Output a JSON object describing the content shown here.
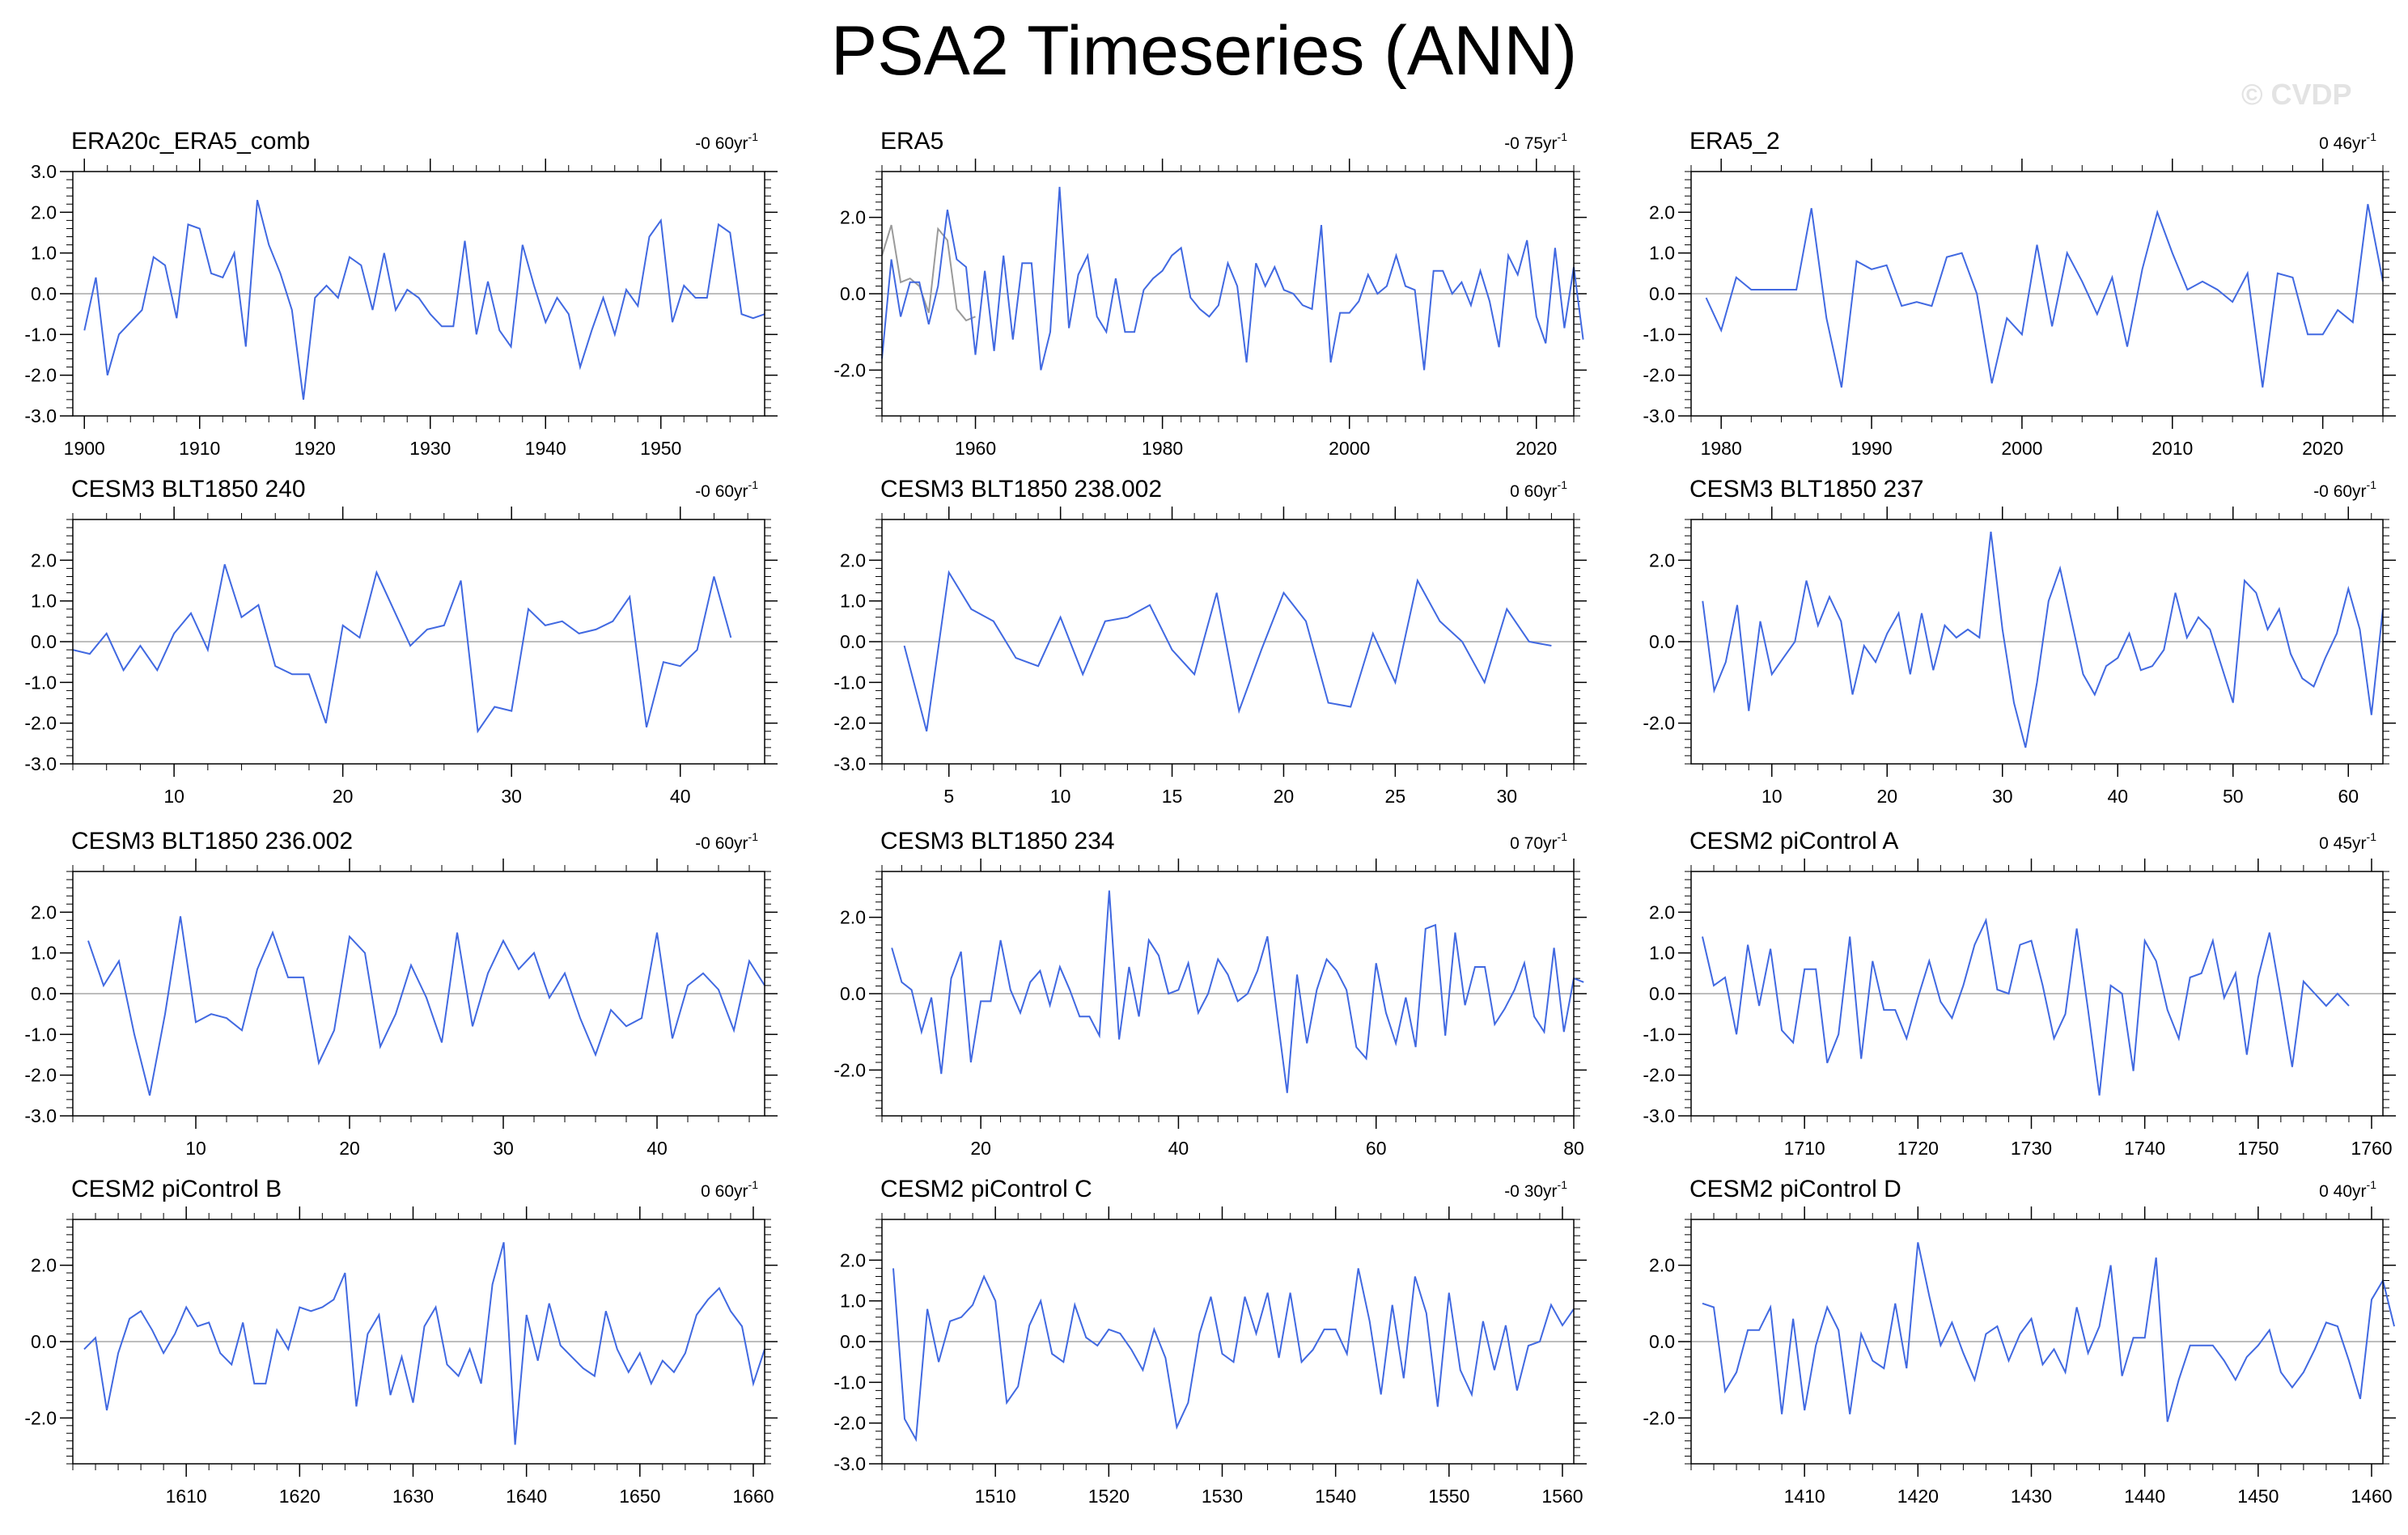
{
  "title": "PSA2 Timeseries (ANN)",
  "watermark": "© CVDP",
  "colors": {
    "line": "#4169e1",
    "zero": "#bdbdbd",
    "obs_overlay": "#9a9a9a",
    "axis": "#000000"
  },
  "chart_data": [
    {
      "type": "line",
      "title": "ERA20c_ERA5_comb",
      "trend": "-0 60yr",
      "xlim": [
        1899,
        1959
      ],
      "ylim": [
        -3,
        3
      ],
      "xticks": [
        1900,
        1910,
        1920,
        1930,
        1940,
        1950
      ],
      "yticks": [
        -3,
        -2,
        -1,
        0,
        1,
        2,
        3
      ],
      "ytick_labels": [
        "-3.0",
        "-2.0",
        "-1.0",
        "0.0",
        "1.0",
        "2.0",
        "3.0"
      ],
      "x_start": 1900,
      "x_step": 1,
      "values": [
        -0.9,
        0.4,
        -2.0,
        -1.0,
        -0.7,
        -0.4,
        0.9,
        0.7,
        -0.6,
        1.7,
        1.6,
        0.5,
        0.4,
        1.0,
        -1.3,
        2.3,
        1.2,
        0.5,
        -0.4,
        -2.6,
        -0.1,
        0.2,
        -0.1,
        0.9,
        0.7,
        -0.4,
        1.0,
        -0.4,
        0.1,
        -0.1,
        -0.5,
        -0.8,
        -0.8,
        1.3,
        -1.0,
        0.3,
        -0.9,
        -1.3,
        1.2,
        0.2,
        -0.7,
        -0.1,
        -0.5,
        -1.8,
        -0.9,
        -0.1,
        -1.0,
        0.1,
        -0.3,
        1.4,
        1.8,
        -0.7,
        0.2,
        -0.1,
        -0.1,
        1.7,
        1.5,
        -0.5,
        -0.6,
        -0.5
      ]
    },
    {
      "type": "line",
      "title": "ERA5",
      "trend": "-0 75yr",
      "xlim": [
        1950,
        2024
      ],
      "ylim": [
        -3.2,
        3.2
      ],
      "xticks": [
        1960,
        1980,
        2000,
        2020
      ],
      "yticks": [
        -2,
        0,
        2
      ],
      "ytick_labels": [
        "-2.0",
        "0.0",
        "2.0"
      ],
      "x_start": 1950,
      "x_step": 1,
      "values": [
        -1.7,
        0.9,
        -0.6,
        0.3,
        0.3,
        -0.8,
        0.2,
        2.2,
        0.9,
        0.7,
        -1.6,
        0.6,
        -1.5,
        1.0,
        -1.2,
        0.8,
        0.8,
        -2.0,
        -1.0,
        2.8,
        -0.9,
        0.5,
        1.0,
        -0.6,
        -1.0,
        0.4,
        -1.0,
        -1.0,
        0.1,
        0.4,
        0.6,
        1.0,
        1.2,
        -0.1,
        -0.4,
        -0.6,
        -0.3,
        0.8,
        0.2,
        -1.8,
        0.8,
        0.2,
        0.7,
        0.1,
        0.0,
        -0.3,
        -0.4,
        1.8,
        -1.8,
        -0.5,
        -0.5,
        -0.2,
        0.5,
        0.0,
        0.2,
        1.0,
        0.2,
        0.1,
        -2.0,
        0.6,
        0.6,
        0.0,
        0.3,
        -0.3,
        0.6,
        -0.2,
        -1.4,
        1.0,
        0.5,
        1.4,
        -0.6,
        -1.3,
        1.2,
        -0.9,
        0.7,
        -1.2
      ],
      "overlay": {
        "x_start": 1950,
        "values": [
          1.0,
          1.8,
          0.3,
          0.4,
          0.2,
          -0.5,
          1.7,
          1.4,
          -0.4,
          -0.7,
          -0.6
        ]
      }
    },
    {
      "type": "line",
      "title": "ERA5_2",
      "trend": "0 46yr",
      "xlim": [
        1978,
        2024
      ],
      "ylim": [
        -3,
        3
      ],
      "xticks": [
        1980,
        1990,
        2000,
        2010,
        2020
      ],
      "yticks": [
        -3,
        -2,
        -1,
        0,
        1,
        2
      ],
      "ytick_labels": [
        "-3.0",
        "-2.0",
        "-1.0",
        "0.0",
        "1.0",
        "2.0"
      ],
      "x_start": 1979,
      "x_step": 1,
      "values": [
        -0.1,
        -0.9,
        0.4,
        0.1,
        0.1,
        0.1,
        0.1,
        2.1,
        -0.6,
        -2.3,
        0.8,
        0.6,
        0.7,
        -0.3,
        -0.2,
        -0.3,
        0.9,
        1.0,
        0.0,
        -2.2,
        -0.6,
        -1.0,
        1.2,
        -0.8,
        1.0,
        0.3,
        -0.5,
        0.4,
        -1.3,
        0.6,
        2.0,
        1.0,
        0.1,
        0.3,
        0.1,
        -0.2,
        0.5,
        -2.3,
        0.5,
        0.4,
        -1.0,
        -1.0,
        -0.4,
        -0.7,
        2.2,
        0.3
      ]
    },
    {
      "type": "line",
      "title": "CESM3 BLT1850 240",
      "trend": "-0 60yr",
      "xlim": [
        4,
        45
      ],
      "ylim": [
        -3,
        3
      ],
      "xticks": [
        10,
        20,
        30,
        40
      ],
      "yticks": [
        -3,
        -2,
        -1,
        0,
        1,
        2
      ],
      "ytick_labels": [
        "-3.0",
        "-2.0",
        "-1.0",
        "0.0",
        "1.0",
        "2.0"
      ],
      "x_start": 4,
      "x_step": 1,
      "values": [
        -0.2,
        -0.3,
        0.2,
        -0.7,
        -0.1,
        -0.7,
        0.2,
        0.7,
        -0.2,
        1.9,
        0.6,
        0.9,
        -0.6,
        -0.8,
        -0.8,
        -2.0,
        0.4,
        0.1,
        1.7,
        0.8,
        -0.1,
        0.3,
        0.4,
        1.5,
        -2.2,
        -1.6,
        -1.7,
        0.8,
        0.4,
        0.5,
        0.2,
        0.3,
        0.5,
        1.1,
        -2.1,
        -0.5,
        -0.6,
        -0.2,
        1.6,
        0.1
      ]
    },
    {
      "type": "line",
      "title": "CESM3 BLT1850 238.002",
      "trend": "0 60yr",
      "xlim": [
        2,
        33
      ],
      "ylim": [
        -3,
        3
      ],
      "xticks": [
        5,
        10,
        15,
        20,
        25,
        30
      ],
      "yticks": [
        -3,
        -2,
        -1,
        0,
        1,
        2
      ],
      "ytick_labels": [
        "-3.0",
        "-2.0",
        "-1.0",
        "0.0",
        "1.0",
        "2.0"
      ],
      "x_start": 3,
      "x_step": 1,
      "values": [
        -0.1,
        -2.2,
        1.7,
        0.8,
        0.5,
        -0.4,
        -0.6,
        0.6,
        -0.8,
        0.5,
        0.6,
        0.9,
        -0.2,
        -0.8,
        1.2,
        -1.7,
        -0.2,
        1.2,
        0.5,
        -1.5,
        -1.6,
        0.2,
        -1.0,
        1.5,
        0.5,
        0.0,
        -1.0,
        0.8,
        0.0,
        -0.1
      ]
    },
    {
      "type": "line",
      "title": "CESM3 BLT1850 237",
      "trend": "-0 60yr",
      "xlim": [
        3,
        63
      ],
      "ylim": [
        -3,
        3
      ],
      "xticks": [
        10,
        20,
        30,
        40,
        50,
        60
      ],
      "yticks": [
        -2,
        0,
        2
      ],
      "ytick_labels": [
        "-2.0",
        "0.0",
        "2.0"
      ],
      "x_start": 4,
      "x_step": 1,
      "values": [
        1.0,
        -1.2,
        -0.5,
        0.9,
        -1.7,
        0.5,
        -0.8,
        -0.4,
        0.0,
        1.5,
        0.4,
        1.1,
        0.5,
        -1.3,
        -0.1,
        -0.5,
        0.2,
        0.7,
        -0.8,
        0.7,
        -0.7,
        0.4,
        0.1,
        0.3,
        0.1,
        2.7,
        0.3,
        -1.5,
        -2.6,
        -1.0,
        1.0,
        1.8,
        0.5,
        -0.8,
        -1.3,
        -0.6,
        -0.4,
        0.2,
        -0.7,
        -0.6,
        -0.2,
        1.2,
        0.1,
        0.6,
        0.3,
        -0.6,
        -1.5,
        1.5,
        1.2,
        0.3,
        0.8,
        -0.3,
        -0.9,
        -1.1,
        -0.4,
        0.2,
        1.3,
        0.3,
        -1.8,
        0.8
      ]
    },
    {
      "type": "line",
      "title": "CESM3 BLT1850 236.002",
      "trend": "-0 60yr",
      "xlim": [
        2,
        47
      ],
      "ylim": [
        -3,
        3
      ],
      "xticks": [
        10,
        20,
        30,
        40
      ],
      "yticks": [
        -3,
        -2,
        -1,
        0,
        1,
        2
      ],
      "ytick_labels": [
        "-3.0",
        "-2.0",
        "-1.0",
        "0.0",
        "1.0",
        "2.0"
      ],
      "x_start": 3,
      "x_step": 1,
      "values": [
        1.3,
        0.2,
        0.8,
        -1.0,
        -2.5,
        -0.5,
        1.9,
        -0.7,
        -0.5,
        -0.6,
        -0.9,
        0.6,
        1.5,
        0.4,
        0.4,
        -1.7,
        -0.9,
        1.4,
        1.0,
        -1.3,
        -0.5,
        0.7,
        -0.1,
        -1.2,
        1.5,
        -0.8,
        0.5,
        1.3,
        0.6,
        1.0,
        -0.1,
        0.5,
        -0.6,
        -1.5,
        -0.4,
        -0.8,
        -0.6,
        1.5,
        -1.1,
        0.2,
        0.5,
        0.1,
        -0.9,
        0.8,
        0.2
      ]
    },
    {
      "type": "line",
      "title": "CESM3 BLT1850 234",
      "trend": "0 70yr",
      "xlim": [
        10,
        80
      ],
      "ylim": [
        -3.2,
        3.2
      ],
      "xticks": [
        20,
        40,
        60,
        80
      ],
      "yticks": [
        -2,
        0,
        2
      ],
      "ytick_labels": [
        "-2.0",
        "0.0",
        "2.0"
      ],
      "x_start": 11,
      "x_step": 1,
      "values": [
        1.2,
        0.3,
        0.1,
        -1.0,
        -0.1,
        -2.1,
        0.4,
        1.1,
        -1.8,
        -0.2,
        -0.2,
        1.4,
        0.1,
        -0.5,
        0.3,
        0.6,
        -0.3,
        0.7,
        0.1,
        -0.6,
        -0.6,
        -1.1,
        2.7,
        -1.2,
        0.7,
        -0.6,
        1.4,
        1.0,
        0.0,
        0.1,
        0.8,
        -0.5,
        0.0,
        0.9,
        0.5,
        -0.2,
        0.0,
        0.6,
        1.5,
        -0.6,
        -2.6,
        0.5,
        -1.3,
        0.1,
        0.9,
        0.6,
        0.1,
        -1.4,
        -1.7,
        0.8,
        -0.5,
        -1.3,
        -0.1,
        -1.4,
        1.7,
        1.8,
        -1.1,
        1.6,
        -0.3,
        0.7,
        0.7,
        -0.8,
        -0.4,
        0.1,
        0.8,
        -0.6,
        -1.0,
        1.2,
        -1.0,
        0.4,
        0.3
      ]
    },
    {
      "type": "line",
      "title": "CESM2 piControl A",
      "trend": "0 45yr",
      "xlim": [
        1700,
        1761
      ],
      "ylim": [
        -3,
        3
      ],
      "xticks": [
        1710,
        1720,
        1730,
        1740,
        1750,
        1760
      ],
      "yticks": [
        -3,
        -2,
        -1,
        0,
        1,
        2
      ],
      "ytick_labels": [
        "-3.0",
        "-2.0",
        "-1.0",
        "0.0",
        "1.0",
        "2.0"
      ],
      "x_start": 1701,
      "x_step": 1,
      "values": [
        1.4,
        0.2,
        0.4,
        -1.0,
        1.2,
        -0.3,
        1.1,
        -0.9,
        -1.2,
        0.6,
        0.6,
        -1.7,
        -1.0,
        1.4,
        -1.6,
        0.8,
        -0.4,
        -0.4,
        -1.1,
        -0.1,
        0.8,
        -0.2,
        -0.6,
        0.2,
        1.2,
        1.8,
        0.1,
        0.0,
        1.2,
        1.3,
        0.2,
        -1.1,
        -0.5,
        1.6,
        -0.4,
        -2.5,
        0.2,
        0.0,
        -1.9,
        1.3,
        0.8,
        -0.4,
        -1.1,
        0.4,
        0.5,
        1.3,
        -0.1,
        0.5,
        -1.5,
        0.4,
        1.5,
        -0.1,
        -1.8,
        0.3,
        0.0,
        -0.3,
        0.0,
        -0.3
      ]
    },
    {
      "type": "line",
      "title": "CESM2 piControl B",
      "trend": "0 60yr",
      "xlim": [
        1600,
        1661
      ],
      "ylim": [
        -3.2,
        3.2
      ],
      "xticks": [
        1610,
        1620,
        1630,
        1640,
        1650,
        1660
      ],
      "yticks": [
        -2,
        0,
        2
      ],
      "ytick_labels": [
        "-2.0",
        "0.0",
        "2.0"
      ],
      "x_start": 1601,
      "x_step": 1,
      "values": [
        -0.2,
        0.1,
        -1.8,
        -0.3,
        0.6,
        0.8,
        0.3,
        -0.3,
        0.2,
        0.9,
        0.4,
        0.5,
        -0.3,
        -0.6,
        0.5,
        -1.1,
        -1.1,
        0.3,
        -0.2,
        0.9,
        0.8,
        0.9,
        1.1,
        1.8,
        -1.7,
        0.2,
        0.7,
        -1.4,
        -0.4,
        -1.6,
        0.4,
        0.9,
        -0.6,
        -0.9,
        -0.2,
        -1.1,
        1.5,
        2.6,
        -2.7,
        0.7,
        -0.5,
        1.0,
        -0.1,
        -0.4,
        -0.7,
        -0.9,
        0.8,
        -0.2,
        -0.8,
        -0.3,
        -1.1,
        -0.5,
        -0.8,
        -0.3,
        0.7,
        1.1,
        1.4,
        0.8,
        0.4,
        -1.1,
        -0.2
      ]
    },
    {
      "type": "line",
      "title": "CESM2 piControl C",
      "trend": "-0 30yr",
      "xlim": [
        1500,
        1561
      ],
      "ylim": [
        -3,
        3
      ],
      "xticks": [
        1510,
        1520,
        1530,
        1540,
        1550,
        1560
      ],
      "yticks": [
        -3,
        -2,
        -1,
        0,
        1,
        2
      ],
      "ytick_labels": [
        "-3.0",
        "-2.0",
        "-1.0",
        "0.0",
        "1.0",
        "2.0"
      ],
      "x_start": 1501,
      "x_step": 1,
      "values": [
        1.8,
        -1.9,
        -2.4,
        0.8,
        -0.5,
        0.5,
        0.6,
        0.9,
        1.6,
        1.0,
        -1.5,
        -1.1,
        0.4,
        1.0,
        -0.3,
        -0.5,
        0.9,
        0.1,
        -0.1,
        0.3,
        0.2,
        -0.2,
        -0.7,
        0.3,
        -0.4,
        -2.1,
        -1.5,
        0.2,
        1.1,
        -0.3,
        -0.5,
        1.1,
        0.2,
        1.2,
        -0.4,
        1.2,
        -0.5,
        -0.2,
        0.3,
        0.3,
        -0.3,
        1.8,
        0.5,
        -1.3,
        0.9,
        -0.9,
        1.6,
        0.7,
        -1.6,
        1.2,
        -0.7,
        -1.3,
        0.5,
        -0.7,
        0.4,
        -1.2,
        -0.1,
        0.0,
        0.9,
        0.4,
        0.8
      ]
    },
    {
      "type": "line",
      "title": "CESM2 piControl D",
      "trend": "0 40yr",
      "xlim": [
        1400,
        1461
      ],
      "ylim": [
        -3.2,
        3.2
      ],
      "xticks": [
        1410,
        1420,
        1430,
        1440,
        1450,
        1460
      ],
      "yticks": [
        -2,
        0,
        2
      ],
      "ytick_labels": [
        "-2.0",
        "0.0",
        "2.0"
      ],
      "x_start": 1401,
      "x_step": 1,
      "values": [
        1.0,
        0.9,
        -1.3,
        -0.8,
        0.3,
        0.3,
        0.9,
        -1.9,
        0.6,
        -1.8,
        -0.1,
        0.9,
        0.3,
        -1.9,
        0.2,
        -0.5,
        -0.7,
        1.0,
        -0.7,
        2.6,
        1.2,
        -0.1,
        0.5,
        -0.3,
        -1.0,
        0.2,
        0.4,
        -0.5,
        0.2,
        0.6,
        -0.6,
        -0.2,
        -0.8,
        0.9,
        -0.3,
        0.4,
        2.0,
        -0.9,
        0.1,
        0.1,
        2.2,
        -2.1,
        -1.0,
        -0.1,
        -0.1,
        -0.1,
        -0.5,
        -1.0,
        -0.4,
        -0.1,
        0.3,
        -0.8,
        -1.2,
        -0.8,
        -0.2,
        0.5,
        0.4,
        -0.5,
        -1.5,
        1.1,
        1.6,
        0.4
      ]
    }
  ]
}
